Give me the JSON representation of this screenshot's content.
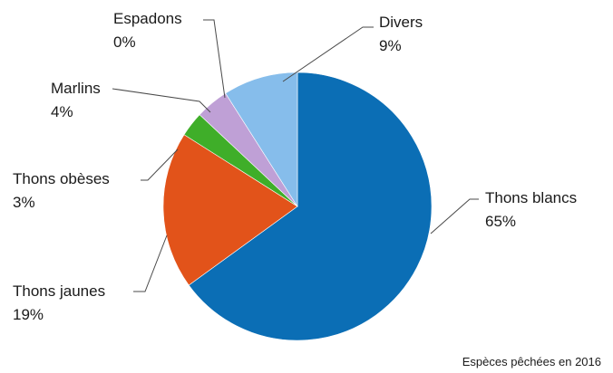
{
  "chart_data": {
    "type": "pie",
    "caption": "Espèces pêchées en 2016",
    "start": "top",
    "direction": "clockwise",
    "slices": [
      {
        "name": "Thons blancs",
        "percent_label": "65%",
        "value": 65,
        "color": "#0B6EB5"
      },
      {
        "name": "Thons jaunes",
        "percent_label": "19%",
        "value": 19,
        "color": "#E2531A"
      },
      {
        "name": "Thons obèses",
        "percent_label": "3%",
        "value": 3,
        "color": "#3FAE29"
      },
      {
        "name": "Marlins",
        "percent_label": "4%",
        "value": 4,
        "color": "#BFA0D6"
      },
      {
        "name": "Espadons",
        "percent_label": "0%",
        "value": 0,
        "color": "#BFA0D6"
      },
      {
        "name": "Divers",
        "percent_label": "9%",
        "value": 9,
        "color": "#86BDEB"
      }
    ]
  }
}
